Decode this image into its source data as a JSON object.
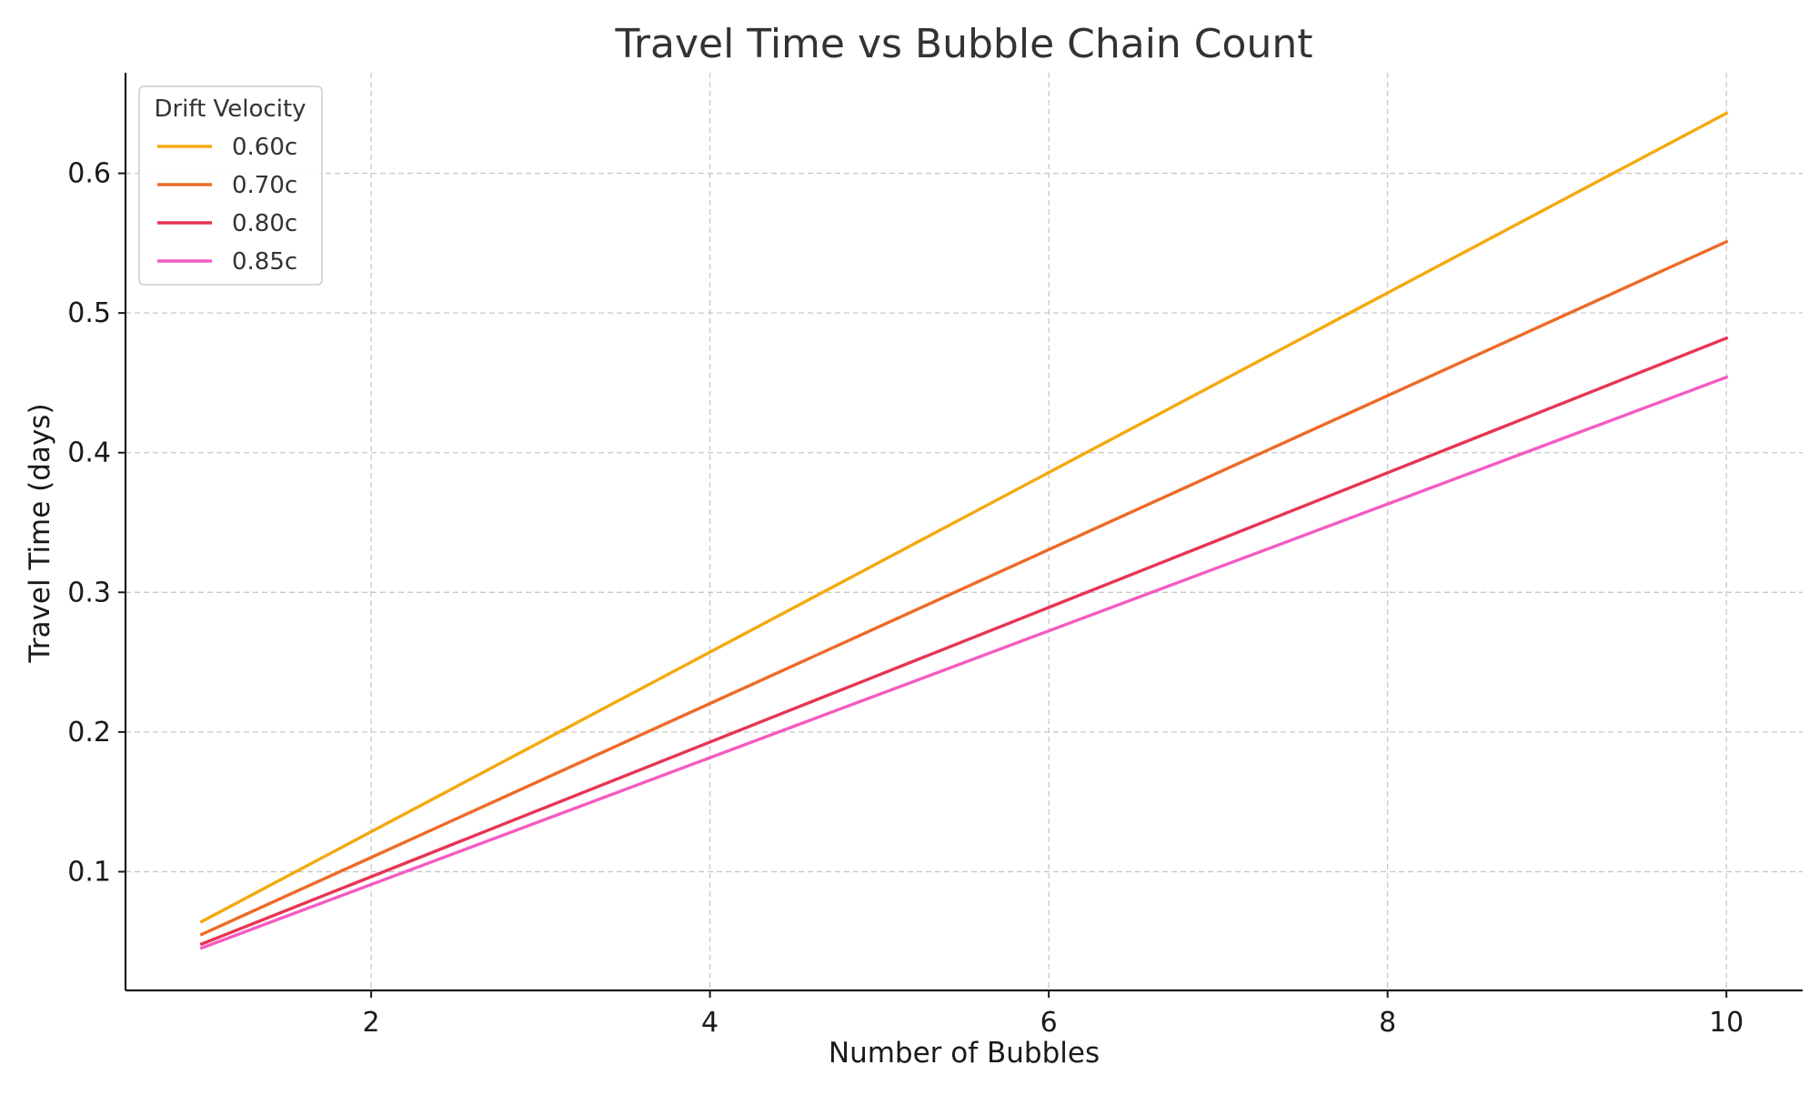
{
  "chart_data": {
    "type": "line",
    "title": "Travel Time vs Bubble Chain Count",
    "xlabel": "Number of Bubbles",
    "ylabel": "Travel Time (days)",
    "xlim": [
      0.55,
      10.45
    ],
    "ylim": [
      0.015,
      0.672
    ],
    "xticks": [
      2,
      4,
      6,
      8,
      10
    ],
    "yticks": [
      0.1,
      0.2,
      0.3,
      0.4,
      0.5,
      0.6
    ],
    "grid": true,
    "legend": {
      "title": "Drift Velocity",
      "placement": "top-left"
    },
    "x": [
      1,
      2,
      3,
      4,
      5,
      6,
      7,
      8,
      9,
      10
    ],
    "series": [
      {
        "name": "0.60c",
        "color": "#F5A90E",
        "values": [
          0.0643,
          0.1286,
          0.1929,
          0.2572,
          0.3215,
          0.3858,
          0.4501,
          0.5144,
          0.5787,
          0.643
        ]
      },
      {
        "name": "0.70c",
        "color": "#EE6A26",
        "values": [
          0.0551,
          0.1102,
          0.1653,
          0.2204,
          0.2755,
          0.3306,
          0.3857,
          0.4408,
          0.4959,
          0.551
        ]
      },
      {
        "name": "0.80c",
        "color": "#E83452",
        "values": [
          0.0482,
          0.0964,
          0.1446,
          0.1928,
          0.241,
          0.2892,
          0.3374,
          0.3856,
          0.4338,
          0.482
        ]
      },
      {
        "name": "0.85c",
        "color": "#F45BC4",
        "values": [
          0.0454,
          0.0908,
          0.1362,
          0.1816,
          0.227,
          0.2724,
          0.3178,
          0.3632,
          0.4086,
          0.454
        ]
      }
    ]
  }
}
